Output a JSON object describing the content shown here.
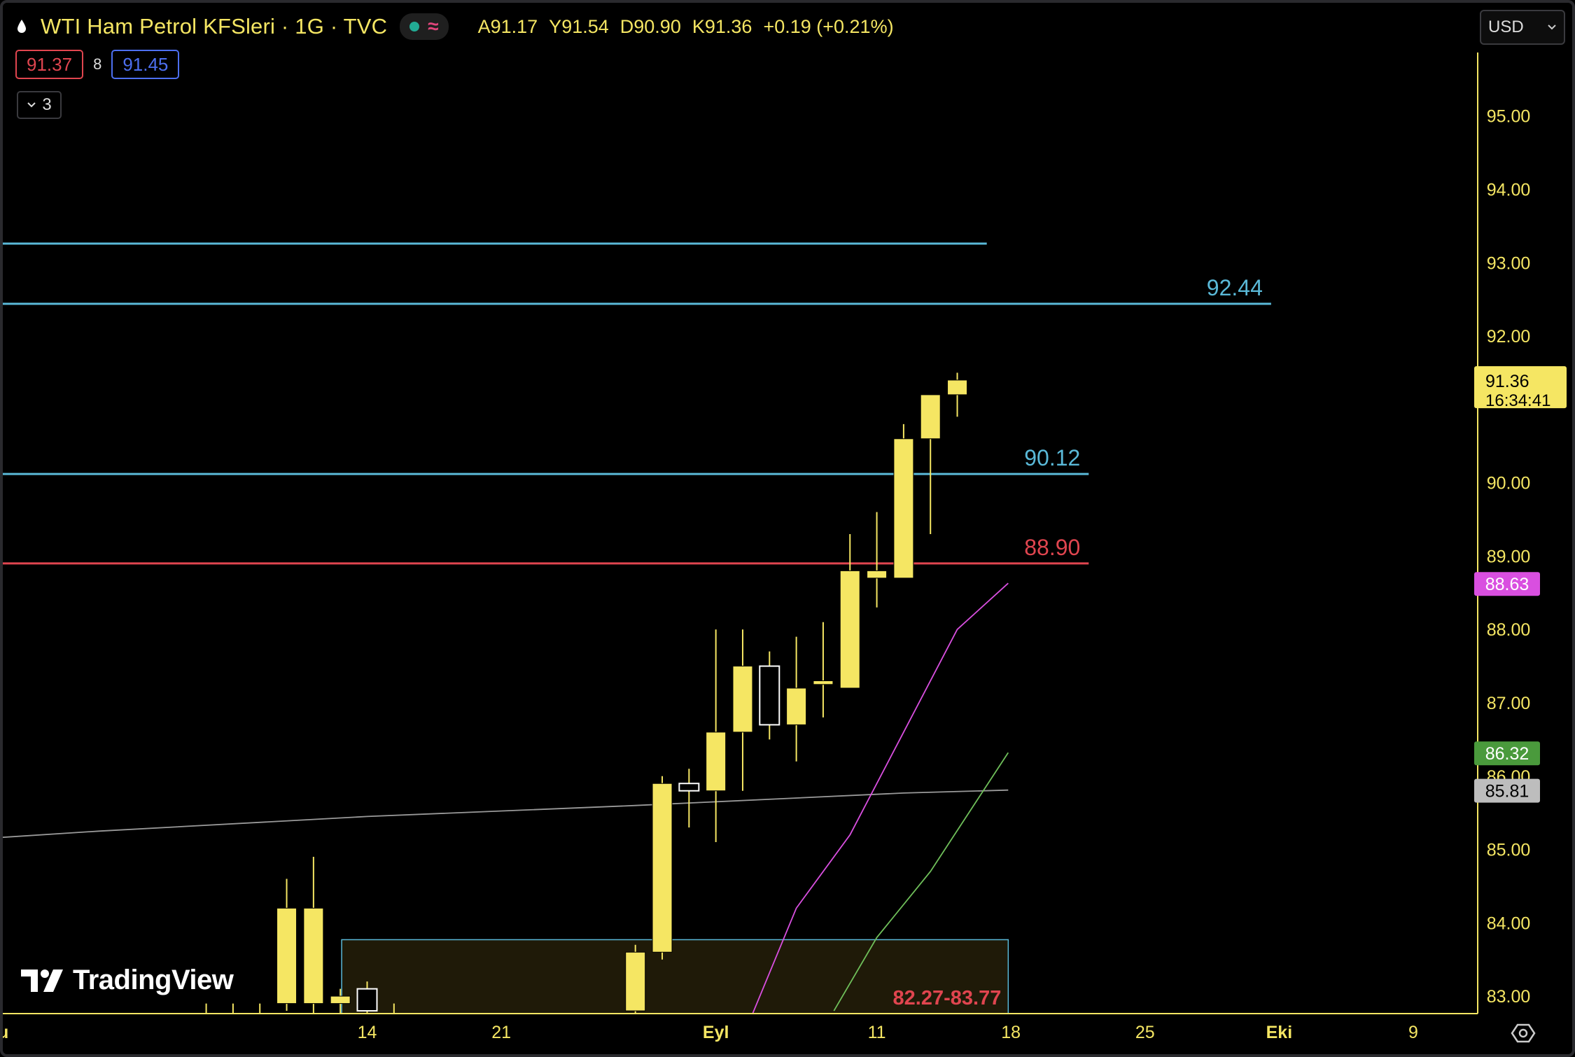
{
  "header": {
    "symbol_title": "WTI Ham Petrol KFSleri · 1G · TVC",
    "ohlc": [
      {
        "label": "A",
        "value": "91.17"
      },
      {
        "label": "Y",
        "value": "91.54"
      },
      {
        "label": "D",
        "value": "90.90"
      },
      {
        "label": "K",
        "value": "91.36"
      }
    ],
    "change": "+0.19 (+0.21%)"
  },
  "trade": {
    "sell_price": "91.37",
    "spread": "8",
    "buy_price": "91.45"
  },
  "indicators_toggle": {
    "count": "3"
  },
  "currency": {
    "selected": "USD"
  },
  "logo": {
    "text": "TradingView"
  },
  "colors": {
    "candle": "#f5e663",
    "hline_blue": "#5ab9d8",
    "hline_red": "#e0454f",
    "ma_magenta": "#d94fe0",
    "ma_green": "#6fbf5a",
    "ma_gray": "#9a9a9a",
    "zone_fill": "#1f1a08",
    "zone_border": "#5ab9d8",
    "axis_text": "#f5e663"
  },
  "chart_data": {
    "type": "candlestick",
    "ylim": [
      82.8,
      96.0
    ],
    "y_ticks": [
      "95.00",
      "94.00",
      "93.00",
      "92.00",
      "90.00",
      "89.00",
      "88.00",
      "87.00",
      "86.00",
      "85.00",
      "84.00",
      "83.00"
    ],
    "x_ticks": [
      {
        "label": "Ağu",
        "day": -14,
        "bold": true
      },
      {
        "label": "14",
        "day": 0
      },
      {
        "label": "21",
        "day": 5
      },
      {
        "label": "Eyl",
        "day": 13,
        "bold": true
      },
      {
        "label": "11",
        "day": 19
      },
      {
        "label": "18",
        "day": 24
      },
      {
        "label": "25",
        "day": 29
      },
      {
        "label": "Eki",
        "day": 34,
        "bold": true
      },
      {
        "label": "9",
        "day": 39
      }
    ],
    "candles": [
      {
        "day": -6,
        "o": 82.1,
        "h": 82.9,
        "l": 81.5,
        "c": 82.5
      },
      {
        "day": -5,
        "o": 82.3,
        "h": 82.9,
        "l": 81.8,
        "c": 82.6
      },
      {
        "day": -4,
        "o": 82.4,
        "h": 82.9,
        "l": 81.9,
        "c": 82.7
      },
      {
        "day": -3,
        "o": 82.9,
        "h": 84.6,
        "l": 82.8,
        "c": 84.2
      },
      {
        "day": -2,
        "o": 84.2,
        "h": 84.9,
        "l": 82.7,
        "c": 82.9
      },
      {
        "day": -1,
        "o": 82.9,
        "h": 83.1,
        "l": 82.4,
        "c": 83.0
      },
      {
        "day": 0,
        "o": 82.8,
        "h": 83.2,
        "l": 82.5,
        "c": 83.1,
        "hollow": true
      },
      {
        "day": 1,
        "o": 82.7,
        "h": 82.9,
        "l": 82.3,
        "c": 82.6
      },
      {
        "day": 10,
        "o": 82.8,
        "h": 83.7,
        "l": 82.7,
        "c": 83.6
      },
      {
        "day": 11,
        "o": 83.6,
        "h": 86.0,
        "l": 83.5,
        "c": 85.9
      },
      {
        "day": 12,
        "o": 85.8,
        "h": 86.1,
        "l": 85.3,
        "c": 85.9,
        "hollow": true
      },
      {
        "day": 13,
        "o": 85.8,
        "h": 88.0,
        "l": 85.1,
        "c": 86.6
      },
      {
        "day": 14,
        "o": 86.6,
        "h": 88.0,
        "l": 85.8,
        "c": 87.5
      },
      {
        "day": 15,
        "o": 87.5,
        "h": 87.7,
        "l": 86.5,
        "c": 86.7,
        "hollow": true
      },
      {
        "day": 16,
        "o": 86.7,
        "h": 87.9,
        "l": 86.2,
        "c": 87.2
      },
      {
        "day": 17,
        "o": 87.25,
        "h": 88.1,
        "l": 86.8,
        "c": 87.3
      },
      {
        "day": 18,
        "o": 87.2,
        "h": 89.3,
        "l": 87.2,
        "c": 88.8
      },
      {
        "day": 19,
        "o": 88.7,
        "h": 89.6,
        "l": 88.3,
        "c": 88.8
      },
      {
        "day": 20,
        "o": 88.7,
        "h": 90.8,
        "l": 88.7,
        "c": 90.6
      },
      {
        "day": 21,
        "o": 90.6,
        "h": 91.2,
        "l": 89.3,
        "c": 91.2
      },
      {
        "day": 22,
        "o": 91.2,
        "h": 91.5,
        "l": 90.9,
        "c": 91.4
      }
    ],
    "hlines": [
      {
        "value": 93.26,
        "color": "blue",
        "end_day": 23.1
      },
      {
        "value": 92.44,
        "color": "blue",
        "label": "92.44",
        "end_day": 33.7
      },
      {
        "value": 90.12,
        "color": "blue",
        "label": "90.12",
        "end_day": 26.9
      },
      {
        "value": 88.9,
        "color": "red",
        "label": "88.90",
        "end_day": 26.9
      }
    ],
    "zone": {
      "from_day": -0.95,
      "to_day": 23.9,
      "low": 82.27,
      "high": 83.77,
      "label": "82.27-83.77"
    },
    "ma_lines": [
      {
        "color": "gray",
        "points": [
          [
            -27,
            84.85
          ],
          [
            -10,
            85.25
          ],
          [
            0,
            85.45
          ],
          [
            10,
            85.6
          ],
          [
            20,
            85.77
          ],
          [
            23.9,
            85.81
          ]
        ]
      },
      {
        "color": "magenta",
        "points": [
          [
            14.3,
            82.7
          ],
          [
            16,
            84.2
          ],
          [
            18,
            85.2
          ],
          [
            20,
            86.6
          ],
          [
            22,
            88.0
          ],
          [
            23.9,
            88.63
          ]
        ]
      },
      {
        "color": "green",
        "points": [
          [
            17.4,
            82.8
          ],
          [
            19,
            83.8
          ],
          [
            21,
            84.7
          ],
          [
            23.9,
            86.32
          ]
        ]
      }
    ],
    "price_tags": [
      {
        "value": 91.36,
        "text": "91.36",
        "sub": "16:34:41",
        "kind": "last"
      },
      {
        "value": 88.63,
        "text": "88.63",
        "kind": "magenta"
      },
      {
        "value": 86.32,
        "text": "86.32",
        "kind": "green"
      },
      {
        "value": 85.81,
        "text": "85.81",
        "kind": "gray"
      }
    ]
  }
}
